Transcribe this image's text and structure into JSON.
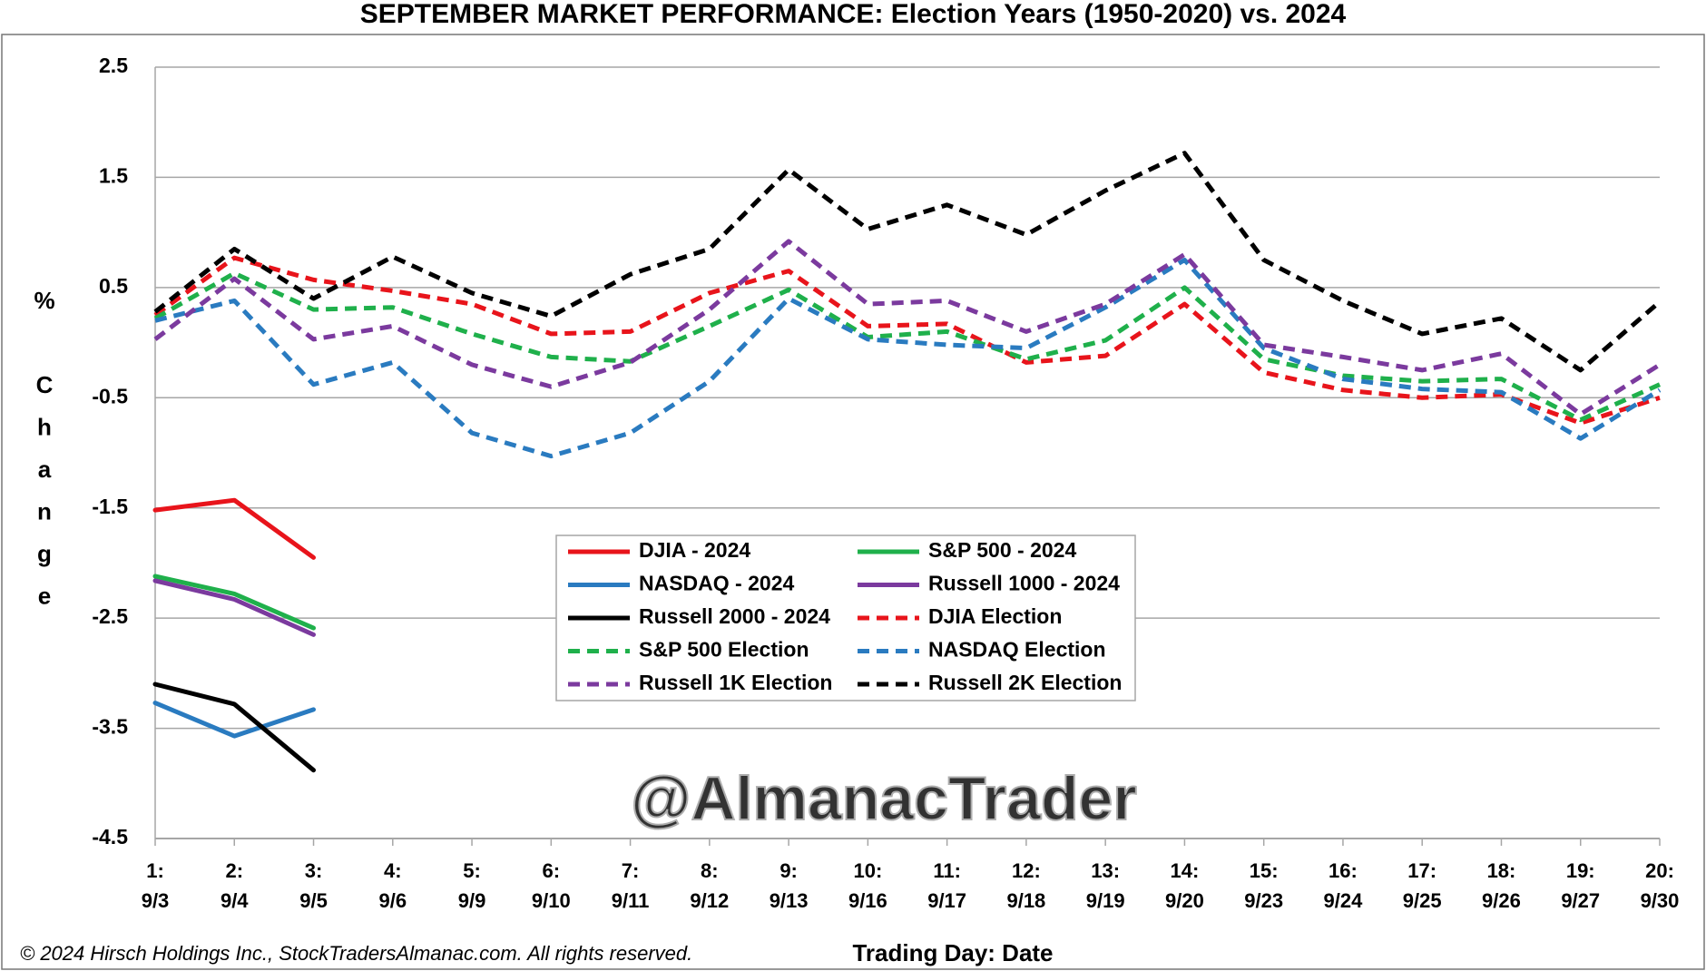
{
  "chart_data": {
    "type": "line",
    "title": "SEPTEMBER MARKET PERFORMANCE:  Election Years (1950-2020) vs. 2024",
    "y_label": "% Change",
    "x_label": "Trading Day: Date",
    "copyright": "© 2024 Hirsch Holdings Inc., StockTradersAlmanac.com. All rights reserved.",
    "watermark": "@AlmanacTrader",
    "categories": [
      [
        "1:",
        "9/3"
      ],
      [
        "2:",
        "9/4"
      ],
      [
        "3:",
        "9/5"
      ],
      [
        "4:",
        "9/6"
      ],
      [
        "5:",
        "9/9"
      ],
      [
        "6:",
        "9/10"
      ],
      [
        "7:",
        "9/11"
      ],
      [
        "8:",
        "9/12"
      ],
      [
        "9:",
        "9/13"
      ],
      [
        "10:",
        "9/16"
      ],
      [
        "11:",
        "9/17"
      ],
      [
        "12:",
        "9/18"
      ],
      [
        "13:",
        "9/19"
      ],
      [
        "14:",
        "9/20"
      ],
      [
        "15:",
        "9/23"
      ],
      [
        "16:",
        "9/24"
      ],
      [
        "17:",
        "9/25"
      ],
      [
        "18:",
        "9/26"
      ],
      [
        "19:",
        "9/27"
      ],
      [
        "20:",
        "9/30"
      ]
    ],
    "ylim": [
      -4.5,
      2.5
    ],
    "yticks": [
      2.5,
      1.5,
      0.5,
      -0.5,
      -1.5,
      -2.5,
      -3.5,
      -4.5
    ],
    "negative_tick_color": "#e00000",
    "grid": true,
    "series": [
      {
        "name": "DJIA - 2024",
        "color": "#e8141b",
        "dashed": false,
        "values": [
          -1.52,
          -1.43,
          -1.95,
          null,
          null,
          null,
          null,
          null,
          null,
          null,
          null,
          null,
          null,
          null,
          null,
          null,
          null,
          null,
          null,
          null
        ]
      },
      {
        "name": "S&P 500 - 2024",
        "color": "#1fb04b",
        "dashed": false,
        "values": [
          -2.12,
          -2.28,
          -2.59,
          null,
          null,
          null,
          null,
          null,
          null,
          null,
          null,
          null,
          null,
          null,
          null,
          null,
          null,
          null,
          null,
          null
        ]
      },
      {
        "name": "NASDAQ - 2024",
        "color": "#2a7bc0",
        "dashed": false,
        "values": [
          -3.27,
          -3.57,
          -3.33,
          null,
          null,
          null,
          null,
          null,
          null,
          null,
          null,
          null,
          null,
          null,
          null,
          null,
          null,
          null,
          null,
          null
        ]
      },
      {
        "name": "Russell 1000 - 2024",
        "color": "#7b3a9e",
        "dashed": false,
        "values": [
          -2.16,
          -2.33,
          -2.65,
          null,
          null,
          null,
          null,
          null,
          null,
          null,
          null,
          null,
          null,
          null,
          null,
          null,
          null,
          null,
          null,
          null
        ]
      },
      {
        "name": "Russell 2000 - 2024",
        "color": "#000000",
        "dashed": false,
        "values": [
          -3.1,
          -3.28,
          -3.88,
          null,
          null,
          null,
          null,
          null,
          null,
          null,
          null,
          null,
          null,
          null,
          null,
          null,
          null,
          null,
          null,
          null
        ]
      },
      {
        "name": "DJIA Election",
        "color": "#e8141b",
        "dashed": true,
        "values": [
          0.25,
          0.77,
          0.57,
          0.47,
          0.35,
          0.08,
          0.1,
          0.45,
          0.65,
          0.15,
          0.17,
          -0.18,
          -0.12,
          0.35,
          -0.27,
          -0.43,
          -0.5,
          -0.47,
          -0.73,
          -0.5
        ]
      },
      {
        "name": "S&P 500 Election",
        "color": "#1fb04b",
        "dashed": true,
        "values": [
          0.22,
          0.63,
          0.3,
          0.32,
          0.08,
          -0.13,
          -0.17,
          0.15,
          0.48,
          0.05,
          0.1,
          -0.15,
          0.02,
          0.5,
          -0.15,
          -0.3,
          -0.35,
          -0.33,
          -0.7,
          -0.38
        ]
      },
      {
        "name": "NASDAQ Election",
        "color": "#2a7bc0",
        "dashed": true,
        "values": [
          0.2,
          0.38,
          -0.38,
          -0.18,
          -0.82,
          -1.03,
          -0.82,
          -0.35,
          0.4,
          0.03,
          -0.02,
          -0.05,
          0.32,
          0.75,
          -0.05,
          -0.33,
          -0.42,
          -0.45,
          -0.87,
          -0.43
        ]
      },
      {
        "name": "Russell 1K Election",
        "color": "#7b3a9e",
        "dashed": true,
        "values": [
          0.03,
          0.58,
          0.03,
          0.15,
          -0.2,
          -0.4,
          -0.18,
          0.3,
          0.92,
          0.35,
          0.38,
          0.1,
          0.35,
          0.8,
          -0.02,
          -0.13,
          -0.25,
          -0.1,
          -0.65,
          -0.2
        ]
      },
      {
        "name": "Russell 2K Election",
        "color": "#000000",
        "dashed": true,
        "values": [
          0.28,
          0.85,
          0.4,
          0.78,
          0.45,
          0.24,
          0.62,
          0.85,
          1.57,
          1.03,
          1.25,
          0.98,
          1.38,
          1.72,
          0.75,
          0.38,
          0.08,
          0.22,
          -0.25,
          0.37
        ]
      }
    ]
  }
}
